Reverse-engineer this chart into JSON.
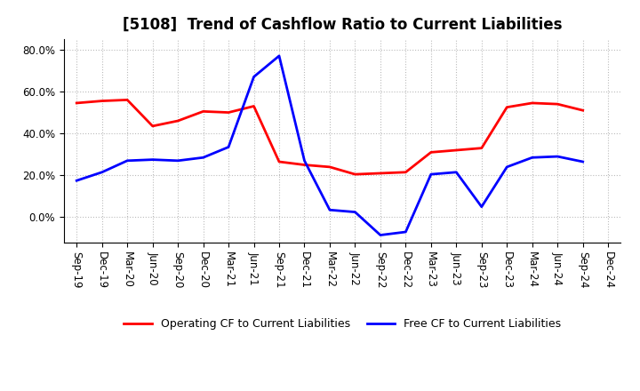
{
  "title": "[5108]  Trend of Cashflow Ratio to Current Liabilities",
  "x_labels": [
    "Sep-19",
    "Dec-19",
    "Mar-20",
    "Jun-20",
    "Sep-20",
    "Dec-20",
    "Mar-21",
    "Jun-21",
    "Sep-21",
    "Dec-21",
    "Mar-22",
    "Jun-22",
    "Sep-22",
    "Dec-22",
    "Mar-23",
    "Jun-23",
    "Sep-23",
    "Dec-23",
    "Mar-24",
    "Jun-24",
    "Sep-24",
    "Dec-24"
  ],
  "operating_cf": [
    0.545,
    0.555,
    0.56,
    0.435,
    0.46,
    0.505,
    0.5,
    0.53,
    0.265,
    0.25,
    0.24,
    0.205,
    0.21,
    0.215,
    0.31,
    0.32,
    0.33,
    0.525,
    0.545,
    0.54,
    0.51,
    null
  ],
  "free_cf": [
    0.175,
    0.215,
    0.27,
    0.275,
    0.27,
    0.285,
    0.335,
    0.67,
    0.77,
    0.27,
    0.035,
    0.025,
    -0.085,
    -0.07,
    0.205,
    0.215,
    0.05,
    0.24,
    0.285,
    0.29,
    0.265,
    null
  ],
  "operating_color": "#FF0000",
  "free_color": "#0000FF",
  "ylim": [
    -0.12,
    0.85
  ],
  "yticks": [
    0.0,
    0.2,
    0.4,
    0.6,
    0.8
  ],
  "ytick_labels": [
    "0.0%",
    "20.0%",
    "40.0%",
    "60.0%",
    "80.0%"
  ],
  "legend_operating": "Operating CF to Current Liabilities",
  "legend_free": "Free CF to Current Liabilities",
  "background_color": "#FFFFFF",
  "grid_color": "#BBBBBB",
  "title_fontsize": 12,
  "tick_fontsize": 8.5,
  "legend_fontsize": 9
}
